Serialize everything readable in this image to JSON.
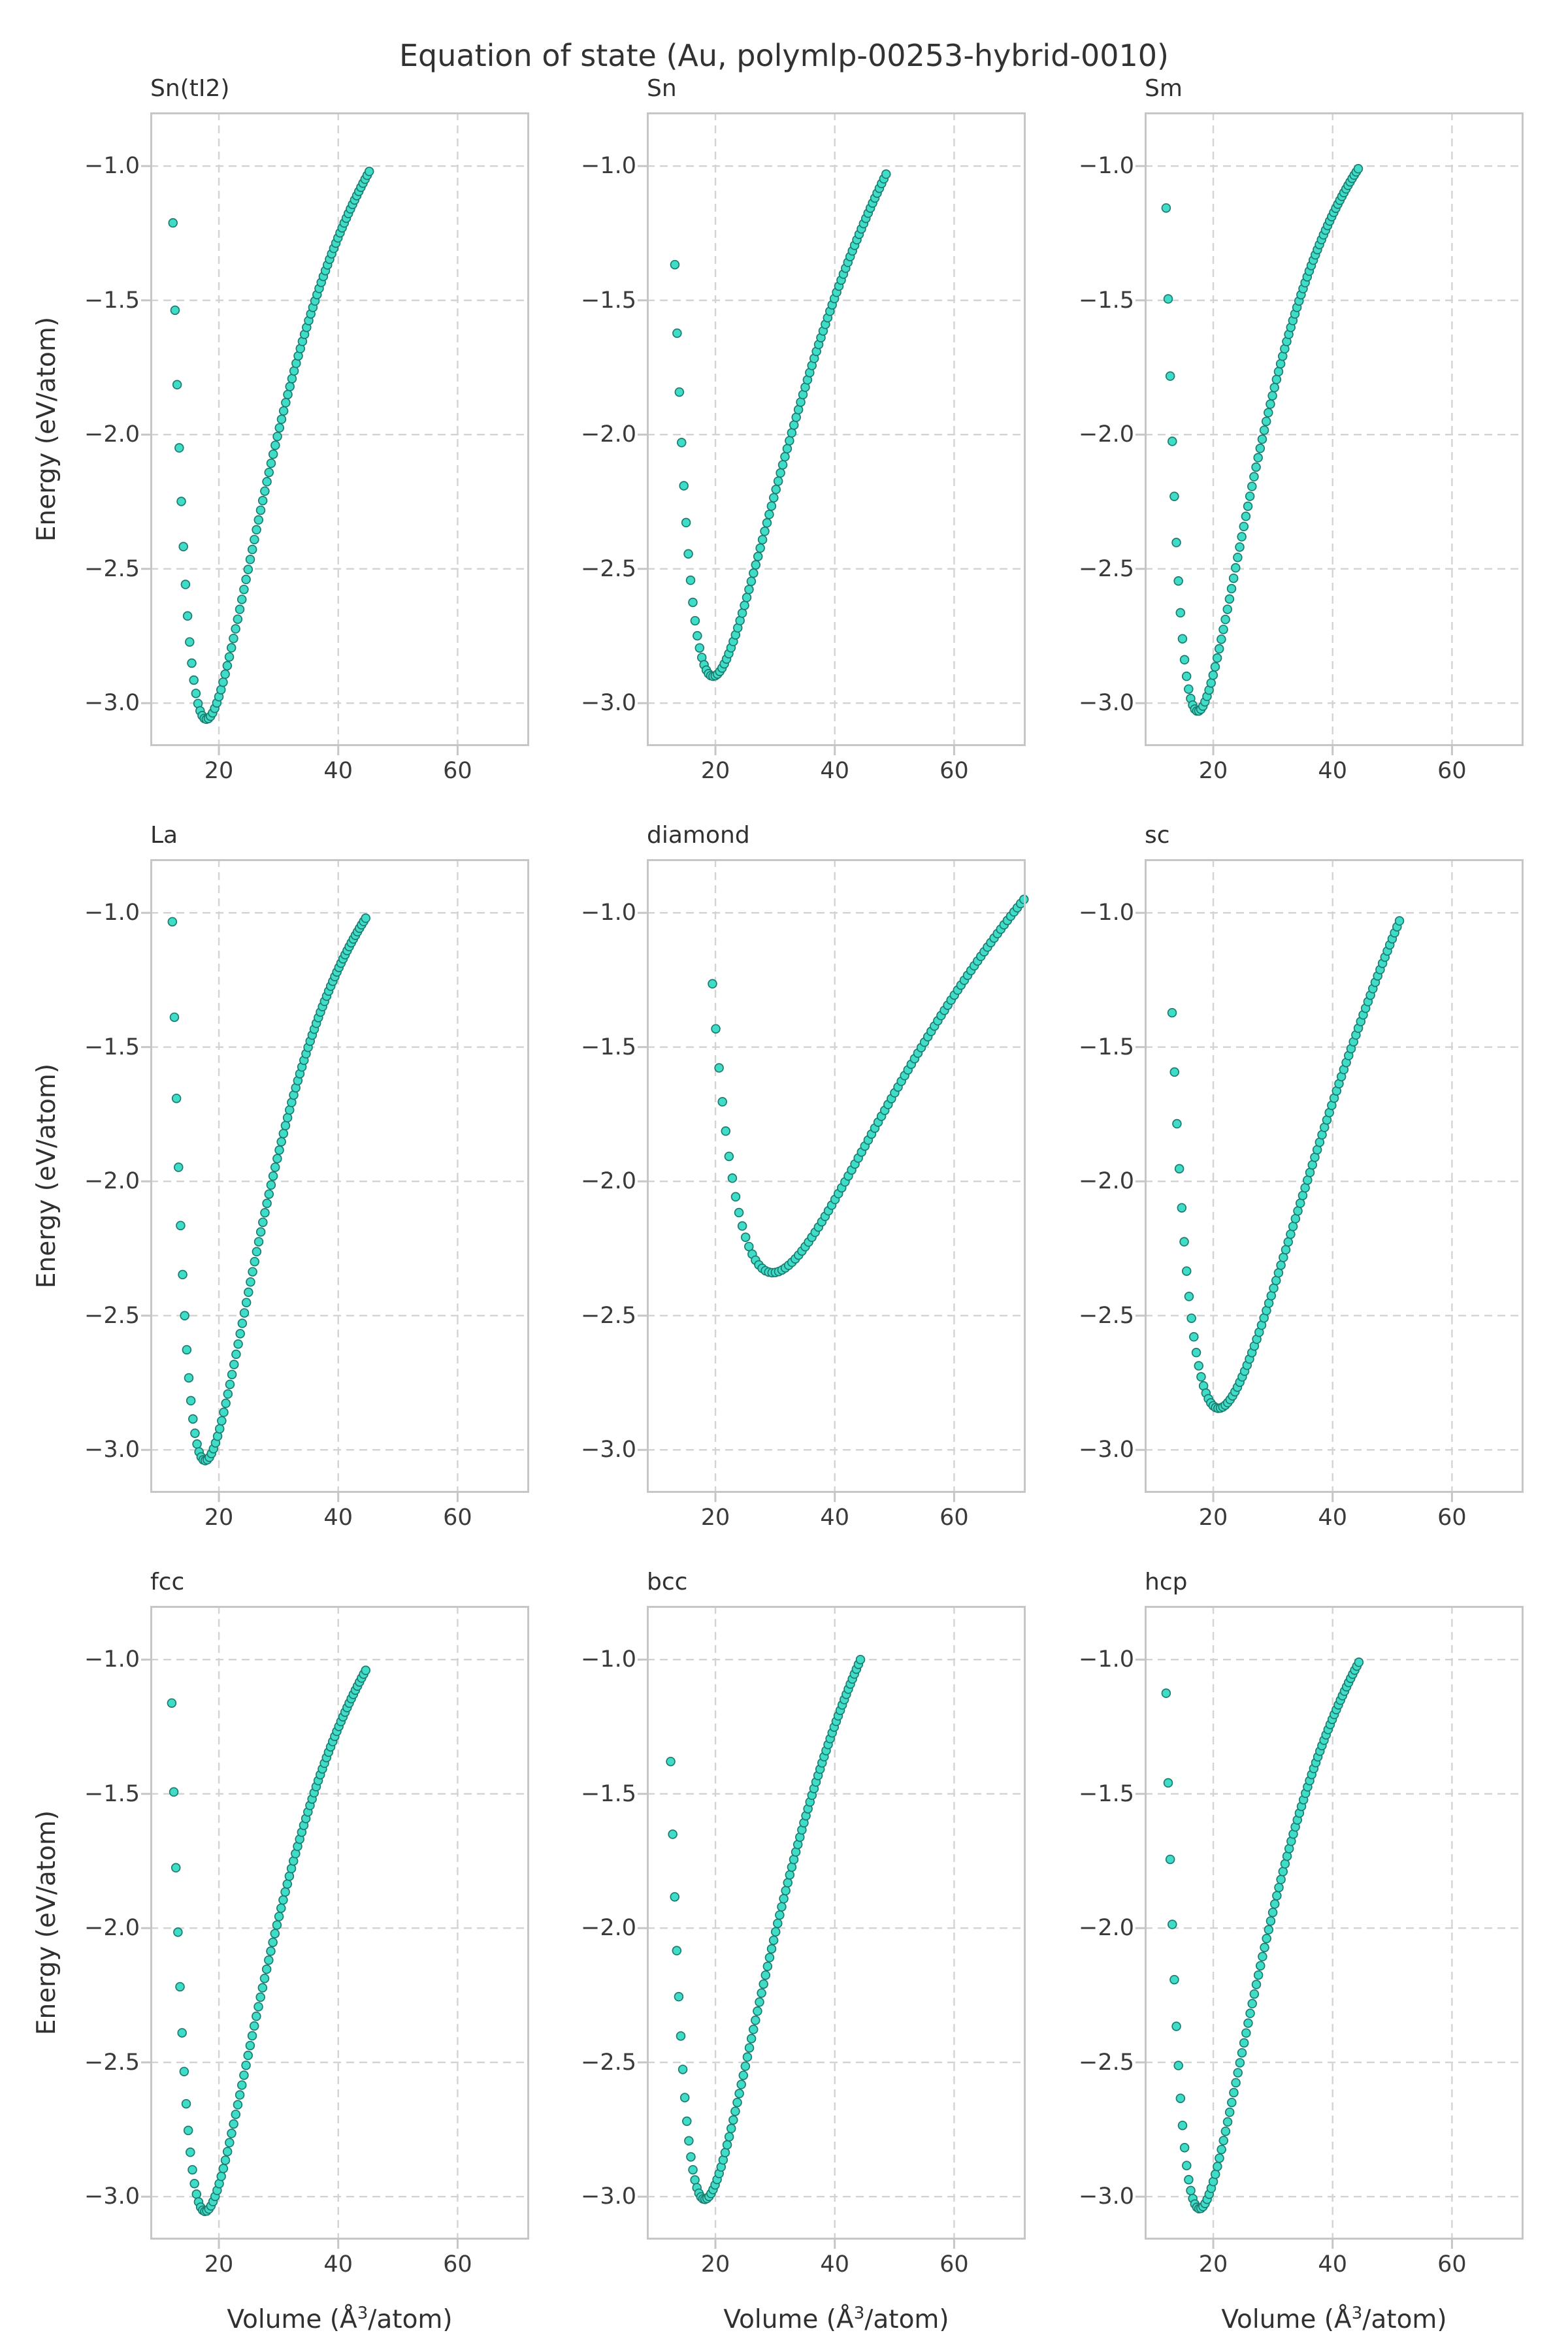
{
  "figure": {
    "title": "Equation of state (Au, polymlp-00253-hybrid-0010)",
    "xlabel": {
      "prefix": "Volume (Å",
      "sup": "3",
      "suffix": "/atom)"
    },
    "ylabel": "Energy (eV/atom)"
  },
  "axes": {
    "xlim": [
      8.5,
      72.0
    ],
    "ylim": [
      -3.16,
      -0.8
    ],
    "xticks": {
      "values": [
        20,
        40,
        60
      ],
      "labels": [
        "20",
        "40",
        "60"
      ]
    },
    "yticks": {
      "values": [
        -1.0,
        -1.5,
        -2.0,
        -2.5,
        -3.0
      ],
      "labels": [
        "−1.0",
        "−1.5",
        "−2.0",
        "−2.5",
        "−3.0"
      ]
    },
    "grid": true,
    "grid_style": "dashed"
  },
  "style": {
    "marker_fill": "#3fdcc8",
    "marker_edge": "#1d7a6e",
    "grid_color": "#d3d3d3",
    "spine_color": "#c6c6c6",
    "tick_color": "#c6c6c6",
    "text_color": "#303030",
    "tick_label_color": "#3a3a3a",
    "background": "#ffffff"
  },
  "chart_data": [
    {
      "type": "scatter",
      "title": "Sn(tI2)",
      "row": 0,
      "col": 0,
      "eos": {
        "model": "birch-murnaghan",
        "V0": 17.9,
        "E0": -3.06,
        "Bp": 6.0,
        "V_start": 12.3,
        "V_end": 45.2,
        "E_end": -1.02,
        "n_points": 95
      },
      "key_points": {
        "first": [
          12.3,
          -1.31
        ],
        "minimum": [
          17.9,
          -3.06
        ],
        "last": [
          45.2,
          -1.02
        ]
      }
    },
    {
      "type": "scatter",
      "title": "Sn",
      "row": 0,
      "col": 1,
      "eos": {
        "model": "birch-murnaghan",
        "V0": 19.6,
        "E0": -2.9,
        "Bp": 5.5,
        "V_start": 13.2,
        "V_end": 48.6,
        "E_end": -1.03,
        "n_points": 95
      },
      "key_points": {
        "first": [
          13.2,
          -1.38
        ],
        "minimum": [
          19.6,
          -2.9
        ],
        "last": [
          48.6,
          -1.03
        ]
      }
    },
    {
      "type": "scatter",
      "title": "Sm",
      "row": 0,
      "col": 2,
      "eos": {
        "model": "birch-murnaghan",
        "V0": 17.4,
        "E0": -3.03,
        "Bp": 6.2,
        "V_start": 12.1,
        "V_end": 44.3,
        "E_end": -1.01,
        "n_points": 95
      },
      "key_points": {
        "first": [
          12.1,
          -1.17
        ],
        "minimum": [
          17.4,
          -3.03
        ],
        "last": [
          44.3,
          -1.01
        ]
      }
    },
    {
      "type": "scatter",
      "title": "La",
      "row": 1,
      "col": 0,
      "eos": {
        "model": "birch-murnaghan",
        "V0": 17.7,
        "E0": -3.04,
        "Bp": 6.2,
        "V_start": 12.2,
        "V_end": 44.6,
        "E_end": -1.02,
        "n_points": 95
      },
      "key_points": {
        "first": [
          12.2,
          -1.18
        ],
        "minimum": [
          17.7,
          -3.04
        ],
        "last": [
          44.6,
          -1.02
        ]
      }
    },
    {
      "type": "scatter",
      "title": "diamond",
      "row": 1,
      "col": 1,
      "eos": {
        "model": "birch-murnaghan",
        "V0": 29.6,
        "E0": -2.34,
        "Bp": 5.0,
        "V_start": 19.5,
        "V_end": 71.7,
        "E_end": -0.95,
        "n_points": 95
      },
      "key_points": {
        "first": [
          19.5,
          -1.33
        ],
        "minimum": [
          29.6,
          -2.34
        ],
        "last": [
          71.7,
          -0.95
        ]
      }
    },
    {
      "type": "scatter",
      "title": "sc",
      "row": 1,
      "col": 2,
      "eos": {
        "model": "birch-murnaghan",
        "V0": 20.9,
        "E0": -2.845,
        "Bp": 4.5,
        "V_start": 13.1,
        "V_end": 51.2,
        "E_end": -1.03,
        "n_points": 95
      },
      "key_points": {
        "first": [
          13.1,
          -1.38
        ],
        "minimum": [
          20.9,
          -2.845
        ],
        "last": [
          51.2,
          -1.03
        ]
      }
    },
    {
      "type": "scatter",
      "title": "fcc",
      "row": 2,
      "col": 0,
      "eos": {
        "model": "birch-murnaghan",
        "V0": 17.7,
        "E0": -3.055,
        "Bp": 6.0,
        "V_start": 12.1,
        "V_end": 44.6,
        "E_end": -1.04,
        "n_points": 95
      },
      "key_points": {
        "first": [
          12.1,
          -1.2
        ],
        "minimum": [
          17.7,
          -3.055
        ],
        "last": [
          44.6,
          -1.04
        ]
      }
    },
    {
      "type": "scatter",
      "title": "bcc",
      "row": 2,
      "col": 1,
      "eos": {
        "model": "birch-murnaghan",
        "V0": 18.2,
        "E0": -3.01,
        "Bp": 5.7,
        "V_start": 12.5,
        "V_end": 44.3,
        "E_end": -1.0,
        "n_points": 95
      },
      "key_points": {
        "first": [
          12.5,
          -1.37
        ],
        "minimum": [
          18.2,
          -3.01
        ],
        "last": [
          44.3,
          -1.0
        ]
      }
    },
    {
      "type": "scatter",
      "title": "hcp",
      "row": 2,
      "col": 2,
      "eos": {
        "model": "birch-murnaghan",
        "V0": 17.7,
        "E0": -3.045,
        "Bp": 6.0,
        "V_start": 12.1,
        "V_end": 44.4,
        "E_end": -1.01,
        "n_points": 95
      },
      "key_points": {
        "first": [
          12.1,
          -1.18
        ],
        "minimum": [
          17.7,
          -3.045
        ],
        "last": [
          44.4,
          -1.01
        ]
      }
    }
  ]
}
